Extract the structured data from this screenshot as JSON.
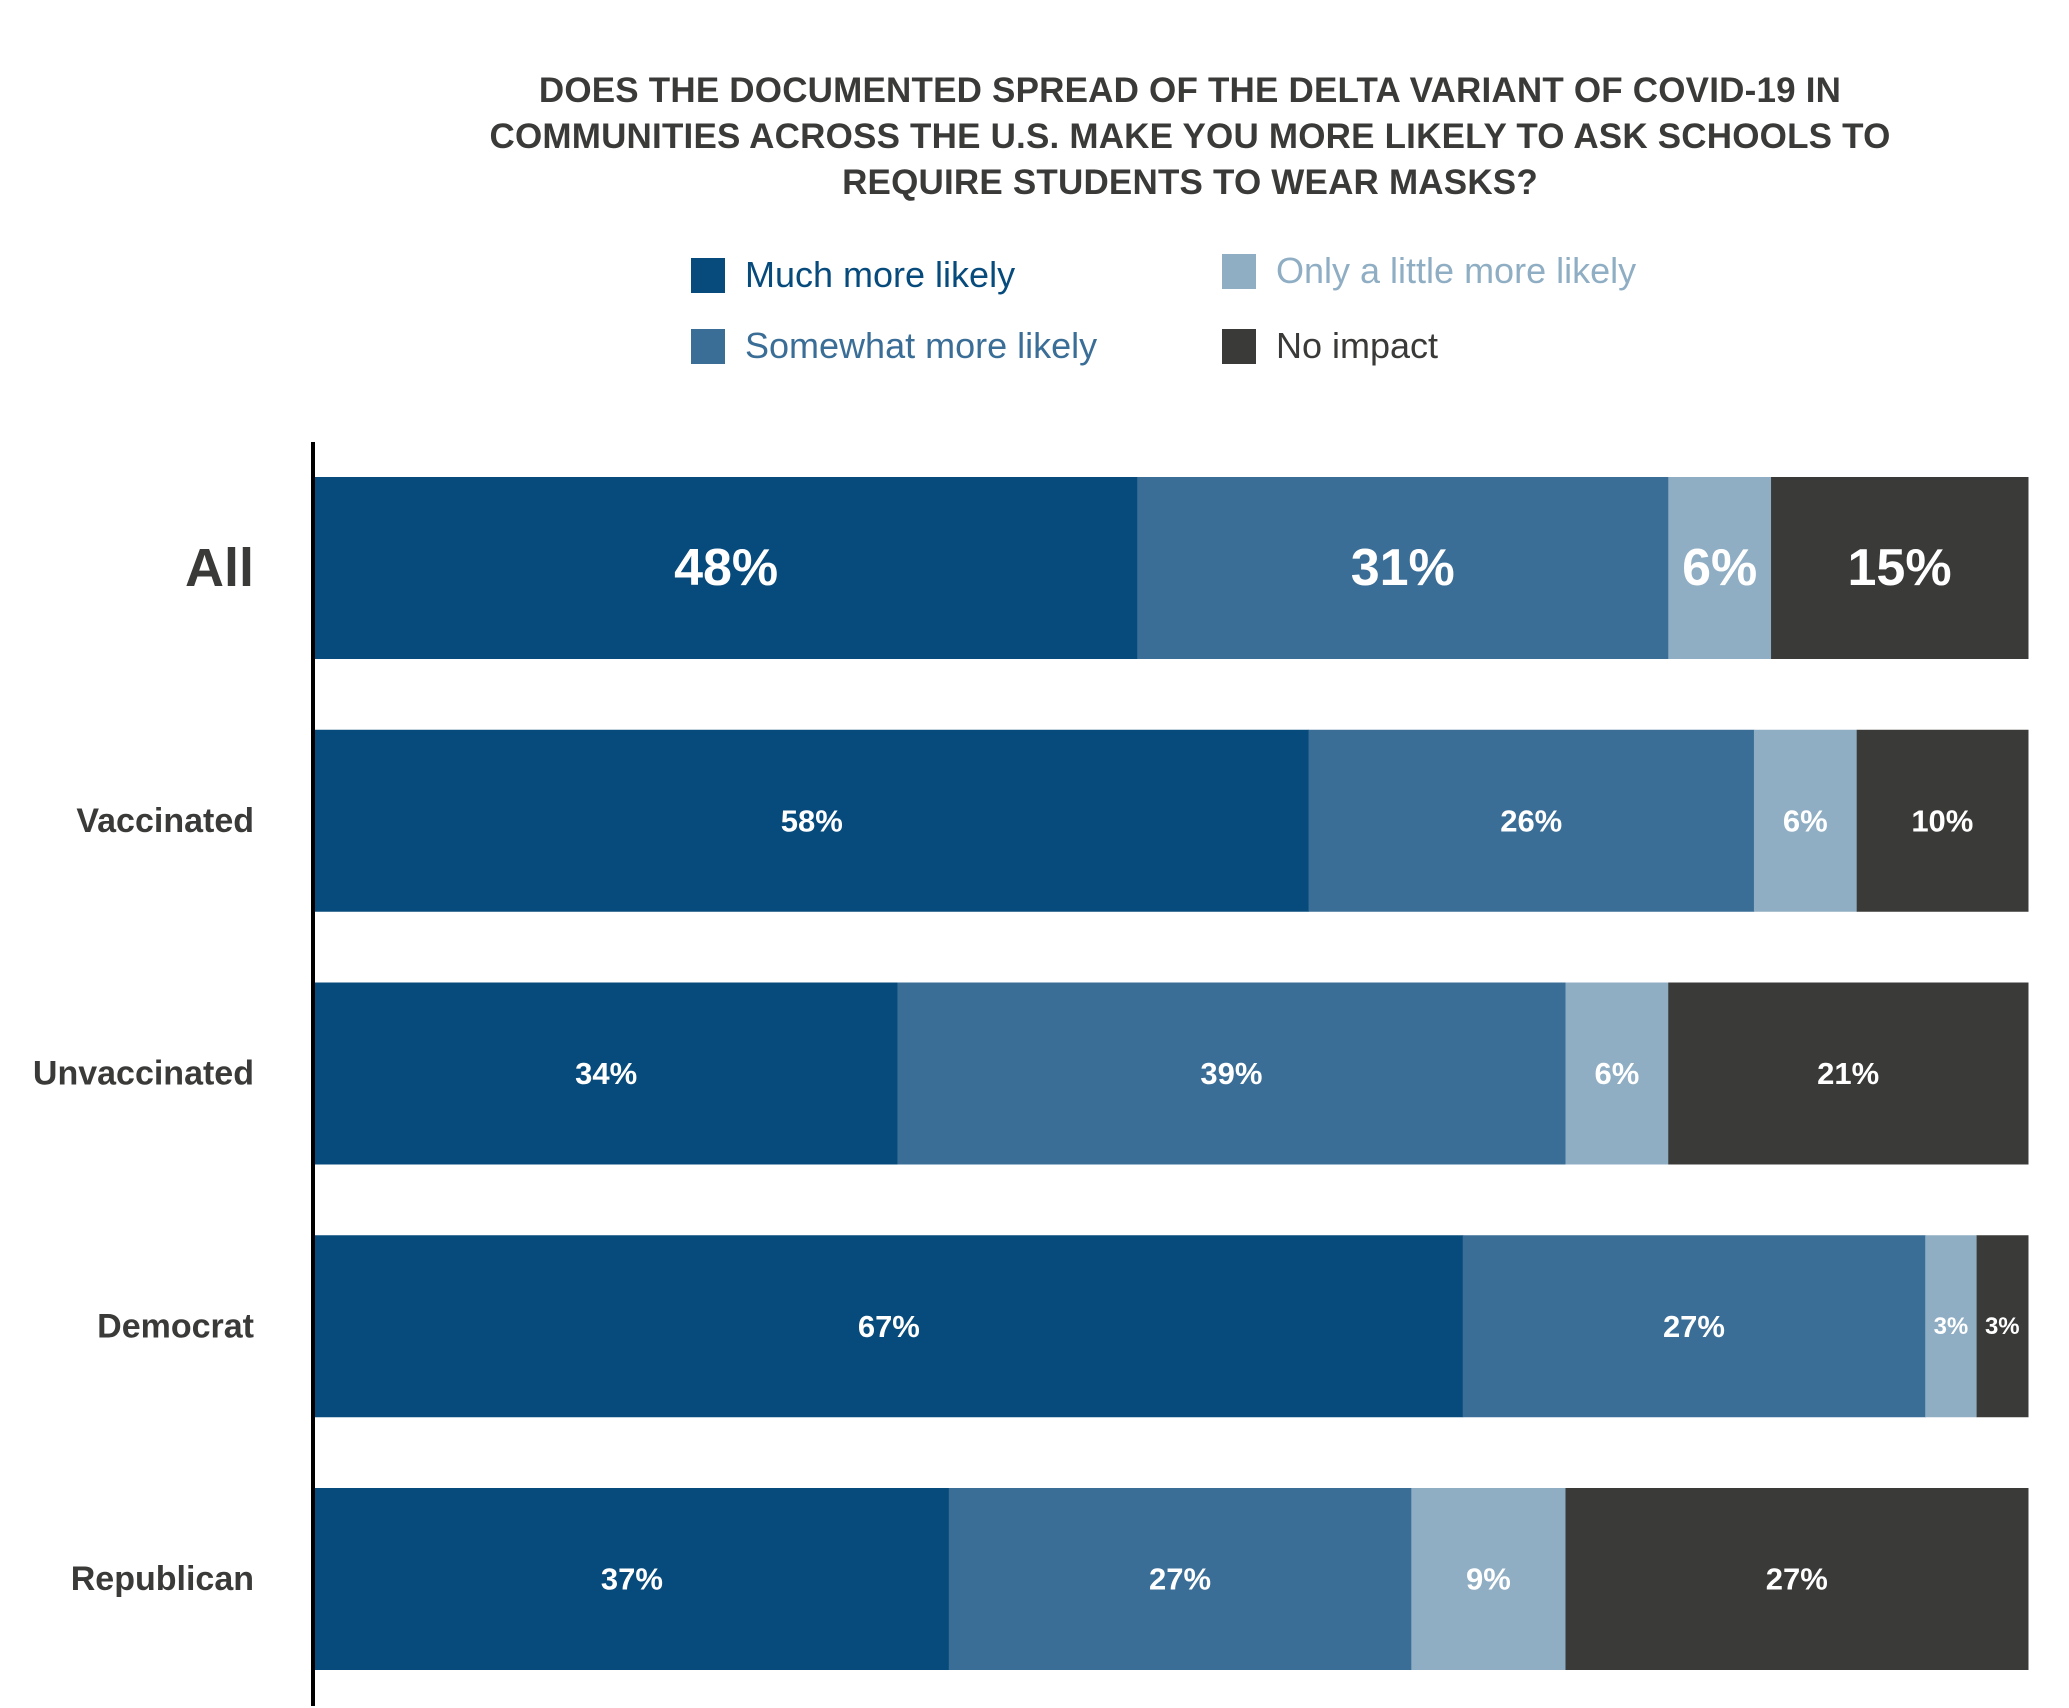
{
  "title_lines": [
    "DOES THE DOCUMENTED SPREAD OF THE DELTA VARIANT OF COVID-19 IN",
    "COMMUNITIES ACROSS THE U.S. MAKE YOU MORE LIKELY TO ASK SCHOOLS TO",
    "REQUIRE STUDENTS TO WEAR MASKS?"
  ],
  "legend": [
    {
      "label": "Much more likely",
      "color": "#074b7c",
      "text_color": "#074b7c"
    },
    {
      "label": "Somewhat more likely",
      "color": "#3a6e97",
      "text_color": "#3a6e97"
    },
    {
      "label": "Only a little more likely",
      "color": "#8faec4",
      "text_color": "#8faec4"
    },
    {
      "label": "No impact",
      "color": "#3a3b39",
      "text_color": "#3a3b39"
    }
  ],
  "chart_data": {
    "type": "bar",
    "orientation": "horizontal",
    "stacked": true,
    "title": "DOES THE DOCUMENTED SPREAD OF THE DELTA VARIANT OF COVID-19 IN COMMUNITIES ACROSS THE U.S. MAKE YOU MORE LIKELY TO ASK SCHOOLS TO REQUIRE STUDENTS TO WEAR MASKS?",
    "xlabel": "",
    "ylabel": "",
    "xlim": [
      0,
      100
    ],
    "grid": false,
    "legend_position": "top",
    "categories": [
      "All",
      "Vaccinated",
      "Unvaccinated",
      "Democrat",
      "Republican"
    ],
    "series": [
      {
        "name": "Much more likely",
        "color": "#074b7c",
        "values": [
          48,
          58,
          34,
          67,
          37
        ]
      },
      {
        "name": "Somewhat more likely",
        "color": "#3a6e97",
        "values": [
          31,
          26,
          39,
          27,
          27
        ]
      },
      {
        "name": "Only a little more likely",
        "color": "#8faec4",
        "values": [
          6,
          6,
          6,
          3,
          9
        ]
      },
      {
        "name": "No impact",
        "color": "#3a3b39",
        "values": [
          15,
          10,
          21,
          3,
          27
        ]
      }
    ],
    "data_labels": [
      [
        "48%",
        "31%",
        "6%",
        "15%"
      ],
      [
        "58%",
        "26%",
        "6%",
        "10%"
      ],
      [
        "34%",
        "39%",
        "6%",
        "21%"
      ],
      [
        "67%",
        "27%",
        "3%",
        "3%"
      ],
      [
        "37%",
        "27%",
        "9%",
        "27%"
      ]
    ]
  }
}
